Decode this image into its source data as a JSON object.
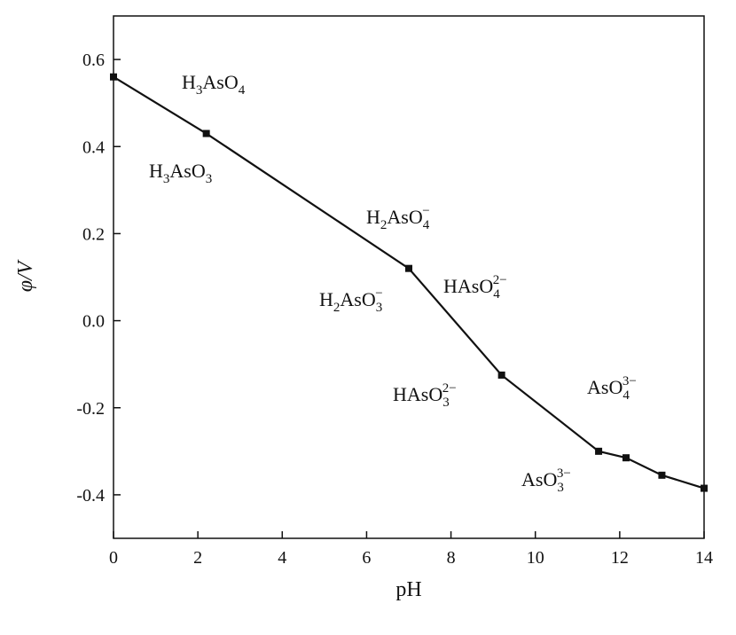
{
  "chart_data": {
    "type": "line",
    "x_label": "pH",
    "y_label": "φ/V",
    "x": [
      0,
      2.2,
      7.0,
      9.2,
      11.5,
      12.15,
      13.0,
      14
    ],
    "series": [
      {
        "color": "#111111",
        "values": [
          0.56,
          0.43,
          0.12,
          -0.125,
          -0.3,
          -0.315,
          -0.355,
          -0.385
        ]
      }
    ],
    "xlim": [
      0,
      14
    ],
    "xticks": [
      0,
      2,
      4,
      6,
      8,
      10,
      12,
      14
    ],
    "ylim": [
      -0.5,
      0.7
    ],
    "yticks": [
      -0.4,
      -0.2,
      {
        "value": 0,
        "label": "0.0"
      },
      0.2,
      0.4,
      0.6
    ],
    "annotations": [
      {
        "parts": [
          {
            "text": "H"
          },
          {
            "sub": "3"
          },
          {
            "text": "AsO"
          },
          {
            "sub": "4"
          }
        ]
      },
      {
        "parts": [
          {
            "text": "H"
          },
          {
            "sub": "3"
          },
          {
            "text": "AsO"
          },
          {
            "sub": "3"
          }
        ]
      },
      {
        "parts": [
          {
            "text": "H"
          },
          {
            "sub": "2"
          },
          {
            "text": "AsO"
          },
          {
            "sub": "4"
          },
          {
            "sup": "−"
          }
        ]
      },
      {
        "parts": [
          {
            "text": "H"
          },
          {
            "sub": "2"
          },
          {
            "text": "AsO"
          },
          {
            "sub": "3"
          },
          {
            "sup": "−"
          }
        ]
      },
      {
        "parts": [
          {
            "text": "HAsO"
          },
          {
            "sub": "4"
          },
          {
            "sup": "2−"
          }
        ]
      },
      {
        "parts": [
          {
            "text": "HAsO"
          },
          {
            "sub": "3"
          },
          {
            "sup": "2−"
          }
        ]
      },
      {
        "parts": [
          {
            "text": "AsO"
          },
          {
            "sub": "4"
          },
          {
            "sup": "3−"
          }
        ]
      },
      {
        "parts": [
          {
            "text": "AsO"
          },
          {
            "sub": "3"
          },
          {
            "sup": "3−"
          }
        ]
      }
    ]
  }
}
